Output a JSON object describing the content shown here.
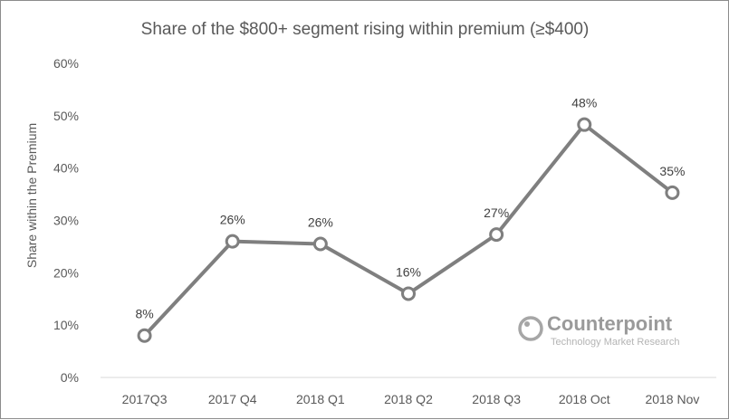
{
  "chart_data": {
    "type": "line",
    "title": "Share of the $800+ segment rising within premium (≥$400)",
    "ylabel": "Share within the Premium",
    "xlabel": "",
    "categories": [
      "2017Q3",
      "2017 Q4",
      "2018 Q1",
      "2018 Q2",
      "2018 Q3",
      "2018 Oct",
      "2018 Nov"
    ],
    "series": [
      {
        "values": [
          8,
          26,
          25.5,
          16,
          27.3,
          48.3,
          35.3
        ],
        "data_labels": [
          "8%",
          "26%",
          "26%",
          "16%",
          "27%",
          "48%",
          "35%"
        ],
        "color": "#7f7f7f"
      }
    ],
    "ylim": [
      0,
      60
    ],
    "yticks": [
      "0%",
      "10%",
      "20%",
      "30%",
      "40%",
      "50%",
      "60%"
    ],
    "grid": false,
    "legend": "none"
  },
  "watermark": {
    "brand": "Counterpoint",
    "tagline": "Technology Market Research"
  }
}
